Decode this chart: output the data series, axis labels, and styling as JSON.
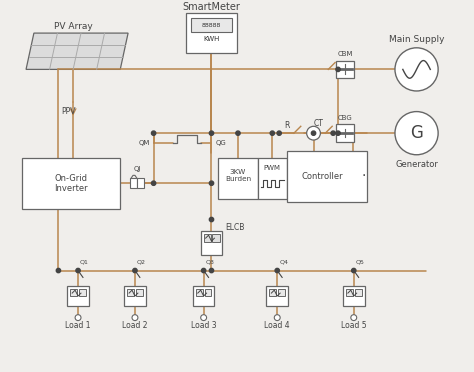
{
  "bg_color": "#f0eeeb",
  "wire": "#b8864e",
  "blk": "#444444",
  "dgray": "#666666",
  "lgray": "#aaaaaa",
  "title": "SmartMeter",
  "pv_label": "PV Array",
  "ppv_label": "PPV",
  "inv_label": "On-Grid\nInverter",
  "qj_label": "QJ",
  "qm_label": "QM",
  "qg_label": "QG",
  "burden_label": "3KW\nBurden",
  "pwm_label": "PWM",
  "ctrl_label": "Controller",
  "r_label": "R",
  "ct_label": "CT",
  "cbm_label": "CBM",
  "cbg_label": "CBG",
  "ms_label": "Main Supply",
  "gen_label": "Generator",
  "elcb_label": "ELCB",
  "load_labels": [
    "Load 1",
    "Load 2",
    "Load 3",
    "Load 4",
    "Load 5"
  ],
  "sw_labels": [
    "Q1",
    "Q2",
    "Q3",
    "Q4",
    "Q5"
  ]
}
